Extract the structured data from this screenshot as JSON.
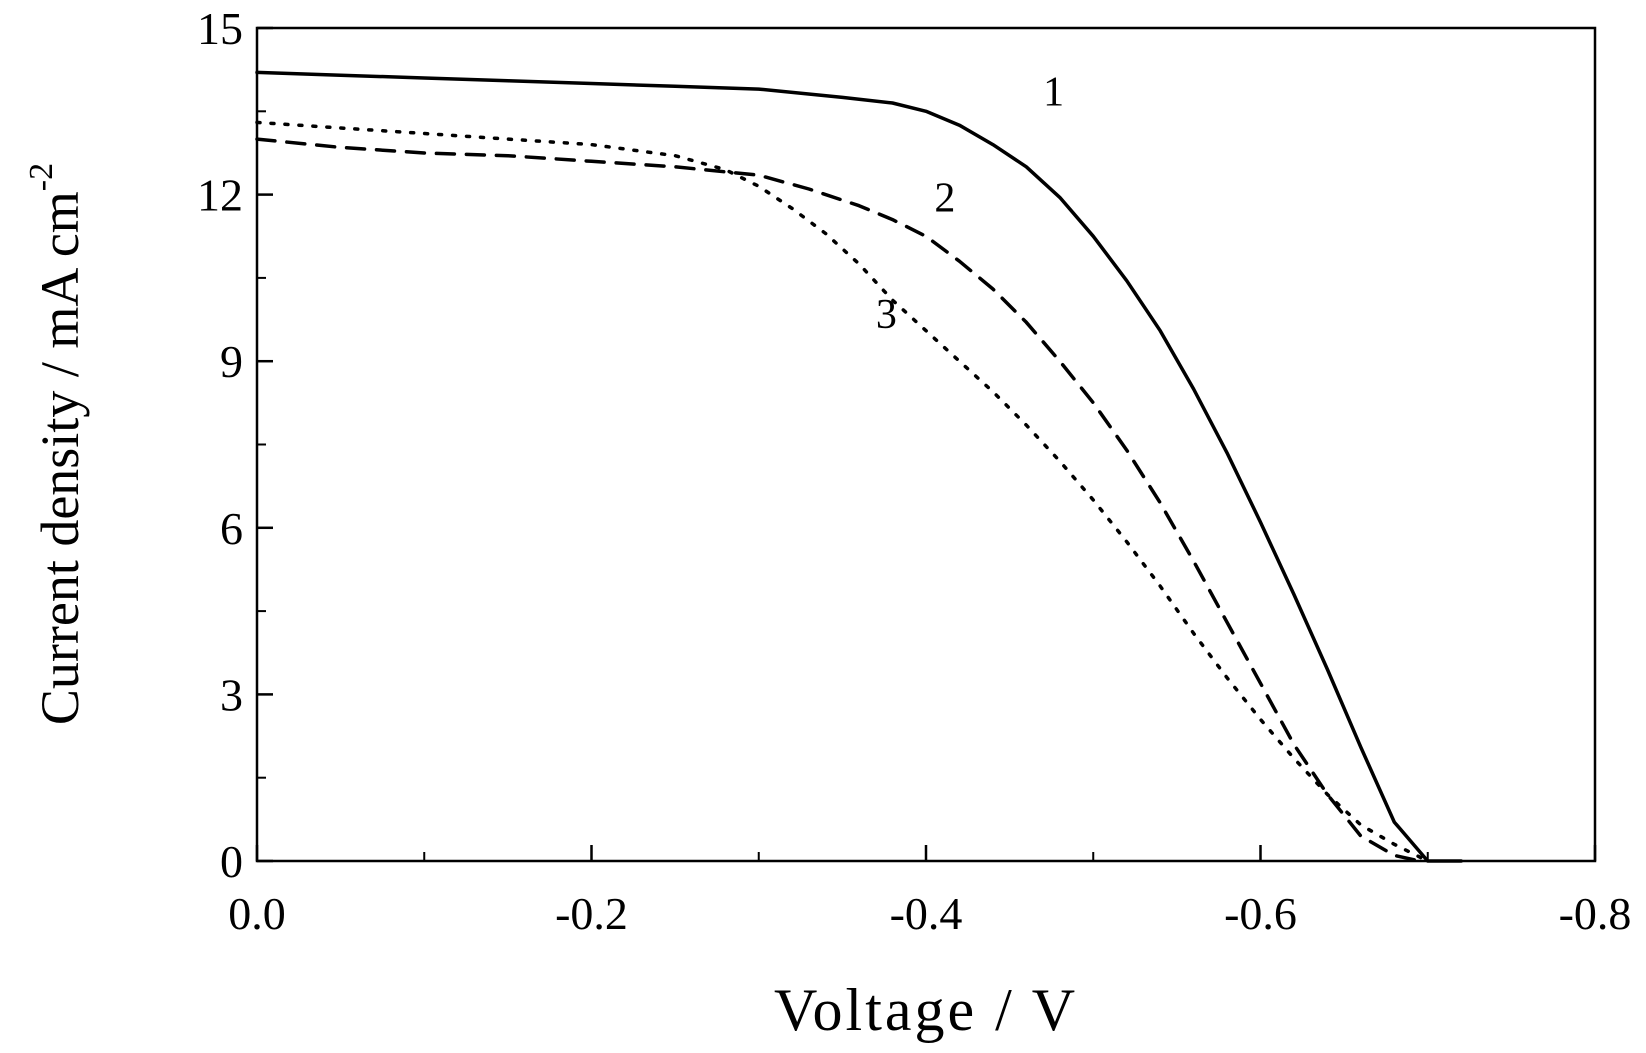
{
  "chart_data": {
    "type": "line",
    "title": "",
    "xlabel": "Voltage / V",
    "ylabel_main": "Current density / mA cm",
    "ylabel_sup": "-2",
    "xlim": [
      0,
      -0.8
    ],
    "ylim": [
      0,
      15
    ],
    "x_ticks": [
      0.0,
      -0.2,
      -0.4,
      -0.6,
      -0.8
    ],
    "x_tick_labels": [
      "0.0",
      "-0.2",
      "-0.4",
      "-0.6",
      "-0.8"
    ],
    "x_minor_ticks": [
      -0.1,
      -0.3,
      -0.5,
      -0.7
    ],
    "y_ticks": [
      0,
      3,
      6,
      9,
      12,
      15
    ],
    "y_tick_labels": [
      "0",
      "3",
      "6",
      "9",
      "12",
      "15"
    ],
    "y_minor_ticks": [
      1.5,
      4.5,
      7.5,
      10.5,
      13.5
    ],
    "grid": false,
    "legend": "none",
    "series": [
      {
        "name": "1",
        "style": "solid",
        "label_at": [
          -0.47,
          13.6
        ],
        "x": [
          0,
          -0.05,
          -0.1,
          -0.15,
          -0.2,
          -0.25,
          -0.3,
          -0.35,
          -0.38,
          -0.4,
          -0.42,
          -0.44,
          -0.46,
          -0.48,
          -0.5,
          -0.52,
          -0.54,
          -0.56,
          -0.58,
          -0.6,
          -0.62,
          -0.64,
          -0.66,
          -0.68,
          -0.7,
          -0.71,
          -0.72
        ],
        "y": [
          14.2,
          14.15,
          14.1,
          14.05,
          14.0,
          13.95,
          13.9,
          13.75,
          13.65,
          13.5,
          13.25,
          12.9,
          12.5,
          11.95,
          11.25,
          10.45,
          9.55,
          8.5,
          7.35,
          6.1,
          4.8,
          3.45,
          2.05,
          0.7,
          -0.5,
          -1.1,
          0.0
        ]
      },
      {
        "name": "2",
        "style": "dashed",
        "label_at": [
          -0.405,
          11.7
        ],
        "x": [
          0,
          -0.05,
          -0.1,
          -0.15,
          -0.2,
          -0.25,
          -0.3,
          -0.33,
          -0.36,
          -0.38,
          -0.4,
          -0.42,
          -0.44,
          -0.46,
          -0.48,
          -0.5,
          -0.52,
          -0.54,
          -0.56,
          -0.58,
          -0.6,
          -0.62,
          -0.64,
          -0.66,
          -0.68,
          -0.695
        ],
        "y": [
          13.0,
          12.85,
          12.75,
          12.7,
          12.6,
          12.5,
          12.35,
          12.1,
          11.8,
          11.55,
          11.25,
          10.8,
          10.3,
          9.7,
          9.0,
          8.25,
          7.4,
          6.45,
          5.4,
          4.3,
          3.2,
          2.1,
          1.2,
          0.45,
          0.1,
          0.0
        ]
      },
      {
        "name": "3",
        "style": "dotted",
        "label_at": [
          -0.37,
          9.6
        ],
        "x": [
          0,
          -0.05,
          -0.1,
          -0.15,
          -0.2,
          -0.25,
          -0.28,
          -0.3,
          -0.32,
          -0.34,
          -0.36,
          -0.38,
          -0.4,
          -0.42,
          -0.44,
          -0.46,
          -0.48,
          -0.5,
          -0.52,
          -0.54,
          -0.56,
          -0.58,
          -0.6,
          -0.62,
          -0.64,
          -0.66,
          -0.68,
          -0.7
        ],
        "y": [
          13.3,
          13.2,
          13.1,
          13.0,
          12.9,
          12.7,
          12.45,
          12.15,
          11.75,
          11.3,
          10.75,
          10.1,
          9.55,
          9.0,
          8.45,
          7.85,
          7.2,
          6.5,
          5.75,
          4.95,
          4.1,
          3.3,
          2.55,
          1.85,
          1.2,
          0.65,
          0.3,
          0.0
        ]
      }
    ]
  }
}
